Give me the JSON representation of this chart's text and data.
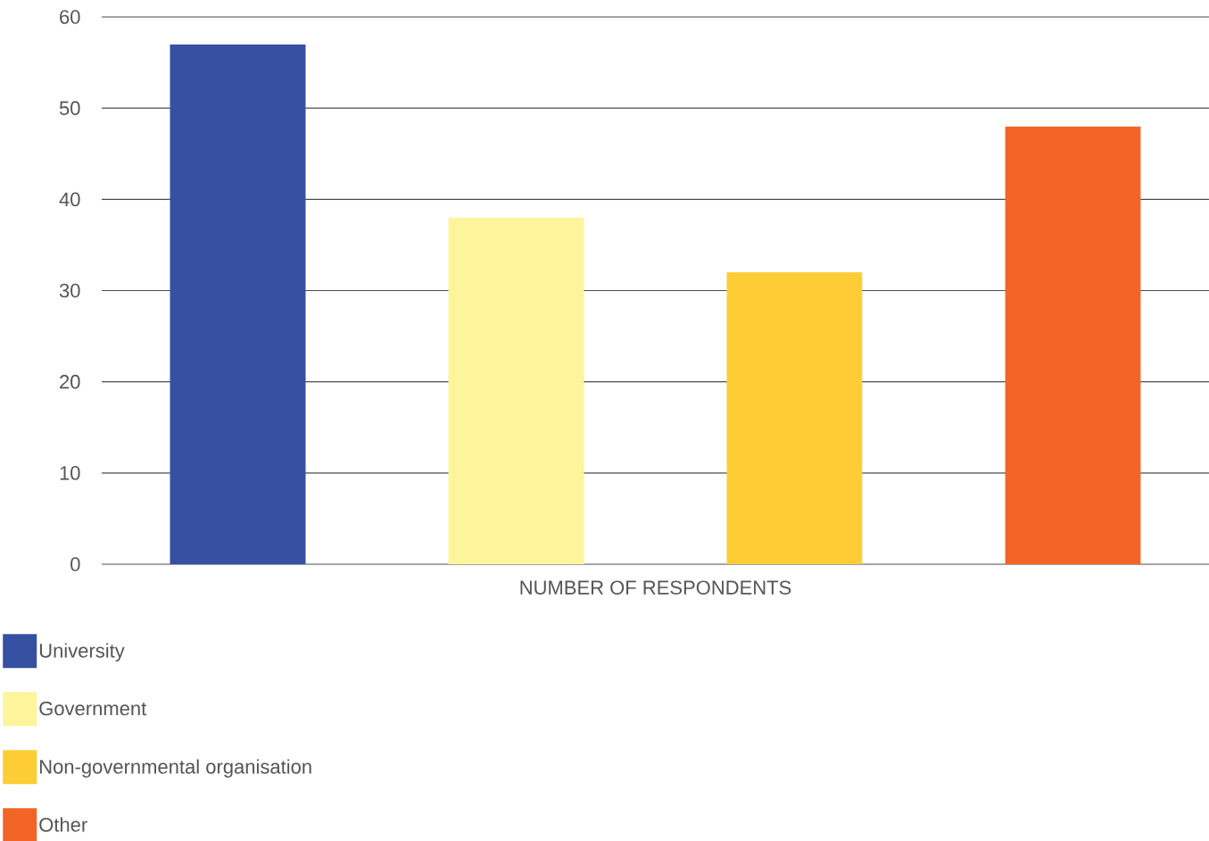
{
  "chart_data": {
    "type": "bar",
    "xlabel": "NUMBER OF RESPONDENTS",
    "categories": [
      null
    ],
    "series": [
      {
        "name": "University",
        "color": "#3650a2",
        "values": [
          57
        ]
      },
      {
        "name": "Government",
        "color": "#fef49c",
        "values": [
          38
        ]
      },
      {
        "name": "Non-governmental organisation",
        "color": "#fecd35",
        "values": [
          32
        ]
      },
      {
        "name": "Other",
        "color": "#f26527",
        "values": [
          48
        ]
      }
    ],
    "ylim": [
      0,
      60
    ],
    "yticks": [
      0,
      10,
      20,
      30,
      40,
      50,
      60
    ],
    "grid": "y",
    "legend": "bottom left"
  }
}
